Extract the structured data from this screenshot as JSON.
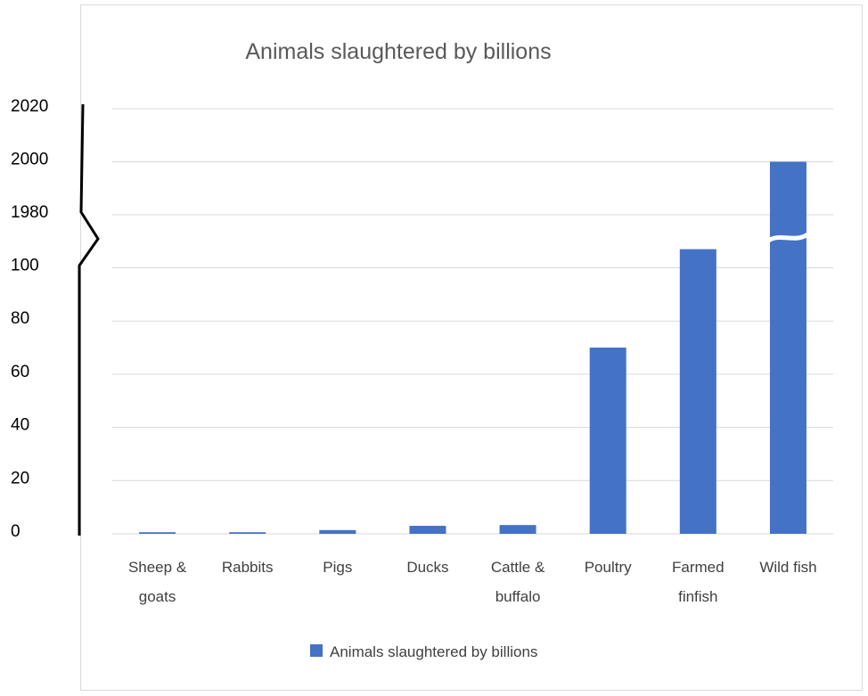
{
  "chart_data": {
    "type": "bar",
    "title": "Animals slaughtered by billions",
    "xlabel": "",
    "ylabel": "",
    "categories": [
      [
        "Sheep &",
        "goats"
      ],
      [
        "Rabbits"
      ],
      [
        "Pigs"
      ],
      [
        "Ducks"
      ],
      [
        "Cattle &",
        "buffalo"
      ],
      [
        "Poultry"
      ],
      [
        "Farmed",
        "finfish"
      ],
      [
        "Wild fish"
      ]
    ],
    "series": [
      {
        "name": "Animals slaughtered by billions",
        "color": "#4472c4",
        "values": [
          0.6,
          0.6,
          1.4,
          3.0,
          3.3,
          70,
          107,
          2000
        ]
      }
    ],
    "y_axis": {
      "broken": true,
      "lower_segment": {
        "ticks": [
          0,
          20,
          40,
          60,
          80,
          100
        ]
      },
      "upper_segment": {
        "ticks": [
          1980,
          2000,
          2020
        ]
      }
    },
    "grid": true,
    "legend": "bottom"
  }
}
